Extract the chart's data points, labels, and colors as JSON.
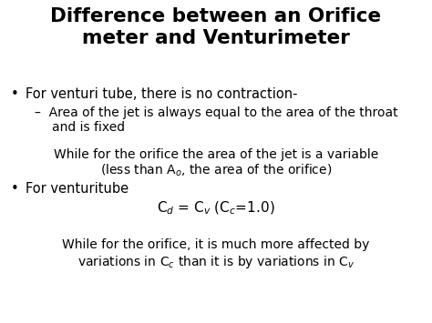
{
  "background_color": "#ffffff",
  "text_color": "#000000",
  "title_line1": "Difference between an Orifice",
  "title_line2": "meter and Venturimeter",
  "title_fontsize": 15.5,
  "body_fontsize": 10.5,
  "sub_fontsize": 10.0
}
